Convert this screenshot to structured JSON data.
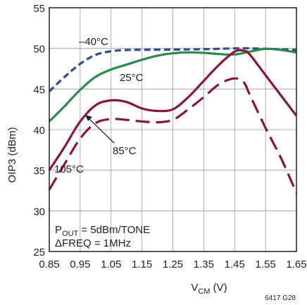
{
  "chart_data": {
    "type": "line",
    "xlabel": "V",
    "xlabel_sub": "CM",
    "xlabel_unit": " (V)",
    "ylabel": "OIP3 (dBm)",
    "xlim": [
      0.85,
      1.65
    ],
    "ylim": [
      25,
      55
    ],
    "x_ticks": [
      "0.85",
      "0.95",
      "1.05",
      "1.15",
      "1.25",
      "1.35",
      "1.45",
      "1.55",
      "1.65"
    ],
    "y_ticks": [
      "25",
      "30",
      "35",
      "40",
      "45",
      "50",
      "55"
    ],
    "grid": true,
    "figure_id": "6417 G28",
    "conditions": [
      {
        "text": "P",
        "sub": "OUT",
        "rest": " = 5dBm/TONE"
      },
      {
        "text": "ΔFREQ = 1MHz"
      }
    ],
    "series": [
      {
        "name": "–40°C",
        "color": "#2e4b9b",
        "dash": "dashed",
        "points": [
          [
            0.85,
            44.7
          ],
          [
            0.9,
            46.5
          ],
          [
            0.95,
            48.1
          ],
          [
            1.0,
            49.2
          ],
          [
            1.05,
            49.65
          ],
          [
            1.1,
            49.8
          ],
          [
            1.15,
            49.82
          ],
          [
            1.25,
            49.85
          ],
          [
            1.35,
            49.9
          ],
          [
            1.45,
            50.0
          ],
          [
            1.5,
            50.0
          ],
          [
            1.55,
            49.95
          ],
          [
            1.6,
            49.9
          ],
          [
            1.65,
            49.8
          ]
        ]
      },
      {
        "name": "25°C",
        "color": "#2a8a4a",
        "dash": "solid",
        "points": [
          [
            0.85,
            41.0
          ],
          [
            0.9,
            42.9
          ],
          [
            0.95,
            44.9
          ],
          [
            1.0,
            46.5
          ],
          [
            1.05,
            47.4
          ],
          [
            1.1,
            48.0
          ],
          [
            1.15,
            48.6
          ],
          [
            1.2,
            49.1
          ],
          [
            1.25,
            49.4
          ],
          [
            1.3,
            49.5
          ],
          [
            1.35,
            49.45
          ],
          [
            1.4,
            49.3
          ],
          [
            1.45,
            49.25
          ],
          [
            1.5,
            49.6
          ],
          [
            1.55,
            49.95
          ],
          [
            1.6,
            49.8
          ],
          [
            1.65,
            49.5
          ]
        ]
      },
      {
        "name": "85°C",
        "color": "#8a1538",
        "dash": "solid",
        "points": [
          [
            0.85,
            35.0
          ],
          [
            0.9,
            37.9
          ],
          [
            0.95,
            41.0
          ],
          [
            1.0,
            43.0
          ],
          [
            1.05,
            43.6
          ],
          [
            1.1,
            43.4
          ],
          [
            1.15,
            42.6
          ],
          [
            1.2,
            42.3
          ],
          [
            1.25,
            42.5
          ],
          [
            1.3,
            44.0
          ],
          [
            1.35,
            46.0
          ],
          [
            1.4,
            48.0
          ],
          [
            1.45,
            49.6
          ],
          [
            1.48,
            49.7
          ],
          [
            1.5,
            49.2
          ],
          [
            1.55,
            46.7
          ],
          [
            1.6,
            44.2
          ],
          [
            1.65,
            41.7
          ]
        ]
      },
      {
        "name": "105°C",
        "color": "#8a1538",
        "dash": "longdash",
        "points": [
          [
            0.85,
            32.6
          ],
          [
            0.9,
            35.8
          ],
          [
            0.95,
            38.9
          ],
          [
            1.0,
            40.8
          ],
          [
            1.05,
            41.3
          ],
          [
            1.1,
            41.2
          ],
          [
            1.15,
            41.0
          ],
          [
            1.2,
            40.9
          ],
          [
            1.25,
            41.2
          ],
          [
            1.3,
            42.5
          ],
          [
            1.35,
            44.0
          ],
          [
            1.4,
            45.6
          ],
          [
            1.45,
            46.3
          ],
          [
            1.48,
            45.8
          ],
          [
            1.5,
            44.2
          ],
          [
            1.55,
            40.2
          ],
          [
            1.6,
            36.5
          ],
          [
            1.65,
            32.2
          ]
        ]
      }
    ],
    "annotations": [
      "–40°C",
      "25°C",
      "85°C",
      "105°C"
    ]
  }
}
